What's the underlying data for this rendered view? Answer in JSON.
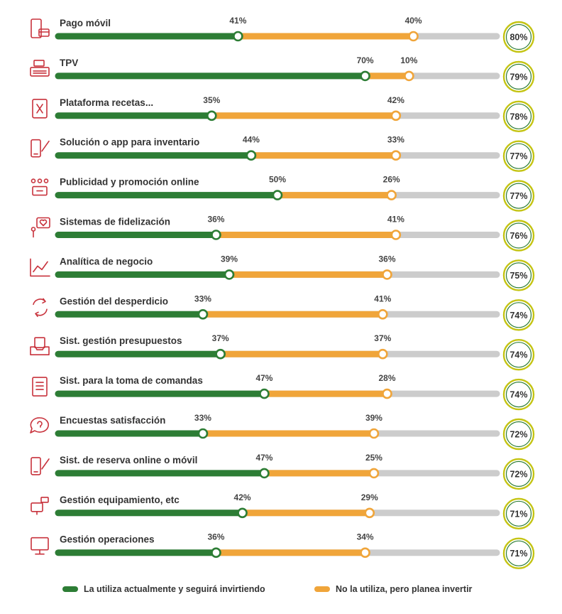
{
  "colors": {
    "current": "#2d7d35",
    "planned": "#f0a53a",
    "track": "#cccccc",
    "icon": "#c8323c",
    "circle": "#c4c413"
  },
  "chart_data": {
    "type": "bar",
    "categories": [
      "Pago móvil",
      "TPV",
      "Plataforma recetas...",
      "Solución o app para inventario",
      "Publicidad y promoción online",
      "Sistemas de fidelización",
      "Analítica de negocio",
      "Gestión del desperdicio",
      "Sist. gestión presupuestos",
      "Sist. para la toma de comandas",
      "Encuestas satisfacción",
      "Sist. de reserva online o móvil",
      "Gestión equipamiento, etc",
      "Gestión operaciones"
    ],
    "icons": [
      "mobile-payment-icon",
      "pos-register-icon",
      "recipe-book-icon",
      "mobile-edit-icon",
      "online-ads-icon",
      "loyalty-icon",
      "analytics-chart-icon",
      "recycle-icon",
      "budget-tray-icon",
      "order-document-icon",
      "question-bubble-icon",
      "mobile-reservation-icon",
      "equipment-icon",
      "monitor-icon"
    ],
    "series": [
      {
        "name": "La utiliza actualmente y seguirá invirtiendo",
        "values": [
          41,
          70,
          35,
          44,
          50,
          36,
          39,
          33,
          37,
          47,
          33,
          47,
          42,
          36
        ],
        "labels": [
          "41%",
          "70%",
          "35%",
          "44%",
          "50%",
          "36%",
          "39%",
          "33%",
          "37%",
          "47%",
          "33%",
          "47%",
          "42%",
          "36%"
        ]
      },
      {
        "name": "No la utiliza, pero planea invertir",
        "values": [
          40,
          10,
          42,
          33,
          26,
          41,
          36,
          41,
          37,
          28,
          39,
          25,
          29,
          34
        ],
        "labels": [
          "40%",
          "10%",
          "42%",
          "33%",
          "26%",
          "41%",
          "36%",
          "41%",
          "37%",
          "28%",
          "39%",
          "25%",
          "29%",
          "34%"
        ]
      }
    ],
    "totals": [
      80,
      79,
      78,
      77,
      77,
      76,
      75,
      74,
      74,
      74,
      72,
      72,
      71,
      71
    ],
    "total_labels": [
      "80%",
      "79%",
      "78%",
      "77%",
      "77%",
      "76%",
      "75%",
      "74%",
      "74%",
      "74%",
      "72%",
      "72%",
      "71%",
      "71%"
    ],
    "ylim": [
      0,
      100
    ],
    "legend_position": "bottom"
  }
}
